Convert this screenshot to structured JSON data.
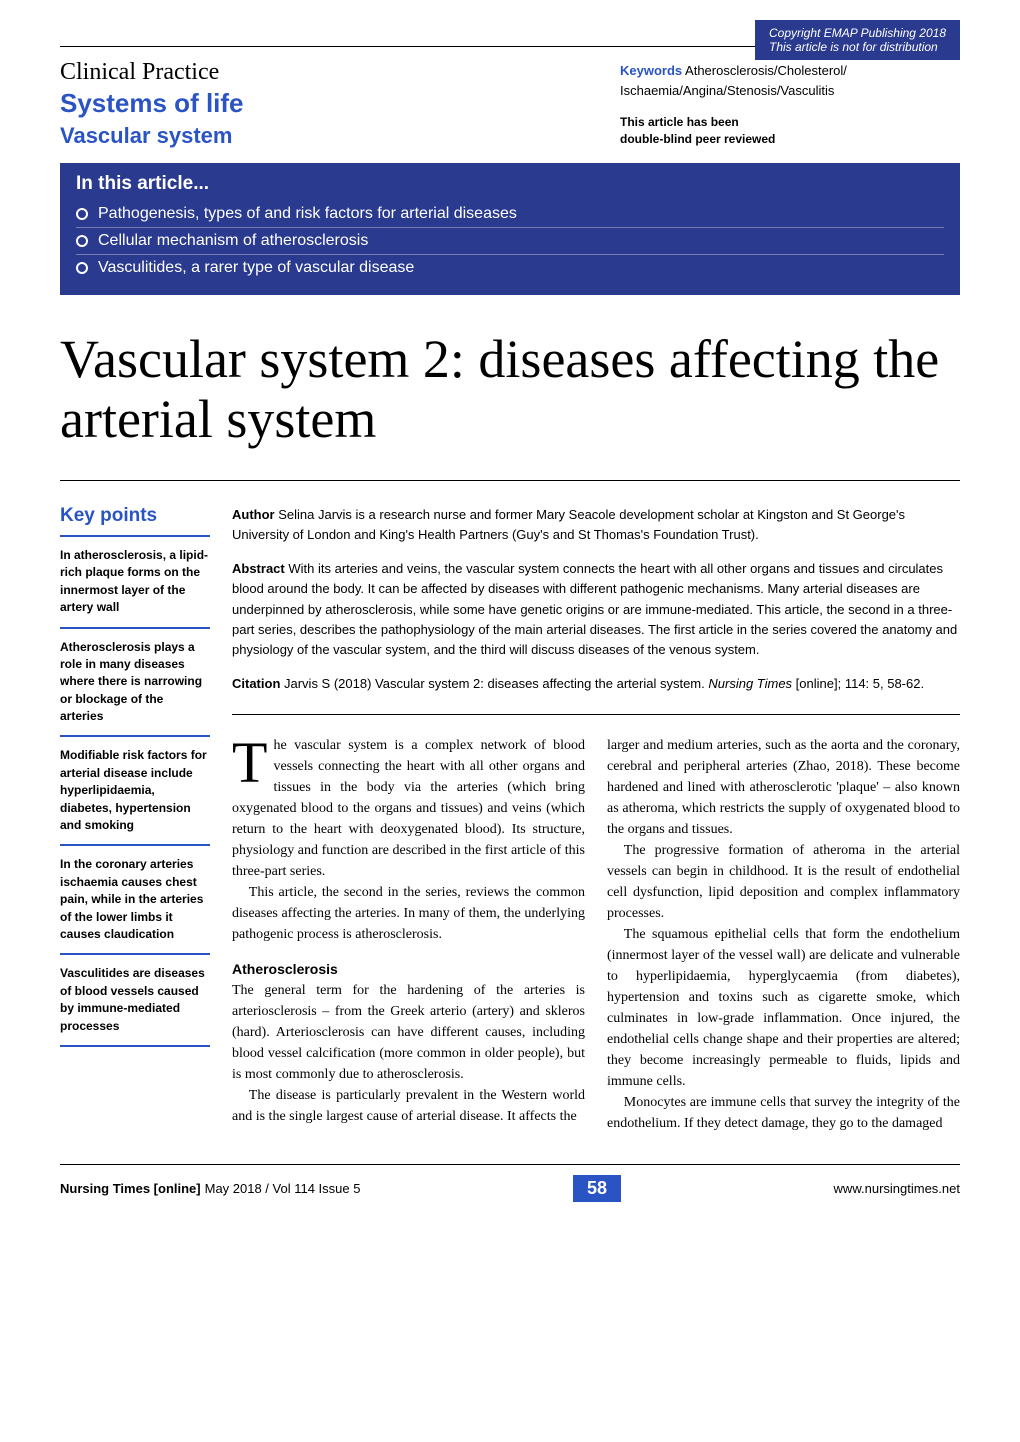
{
  "colors": {
    "brand_blue": "#2a54c4",
    "dark_blue": "#2a3a8f",
    "white": "#ffffff",
    "black": "#000000"
  },
  "copyright": {
    "line1": "Copyright EMAP Publishing 2018",
    "line2": "This article is not for distribution"
  },
  "header": {
    "clinical_practice": "Clinical Practice",
    "systems_of_life": "Systems of life",
    "vascular_system": "Vascular system",
    "keywords_label": "Keywords",
    "keywords_text": " Atherosclerosis/Cholesterol/\nIschaemia/Angina/Stenosis/Vasculitis",
    "peer_reviewed_line1": "This article has been",
    "peer_reviewed_line2": "double-blind peer reviewed"
  },
  "in_this_article": {
    "title": "In this article...",
    "items": [
      "Pathogenesis, types of and risk factors for arterial diseases",
      "Cellular mechanism of atherosclerosis",
      "Vasculitides, a rarer type of vascular disease"
    ]
  },
  "title": "Vascular system 2: diseases affecting the arterial system",
  "key_points": {
    "heading": "Key points",
    "items": [
      "In atherosclerosis, a lipid-rich plaque forms on the innermost layer of the artery wall",
      "Atherosclerosis plays a role in many diseases where there is narrowing or blockage of the arteries",
      "Modifiable risk factors for arterial disease include hyperlipidaemia, diabetes, hypertension and smoking",
      "In the coronary arteries ischaemia causes chest pain, while in the arteries of the lower limbs it causes claudication",
      "Vasculitides are diseases of blood vessels caused by immune-mediated processes"
    ]
  },
  "meta": {
    "author_label": "Author",
    "author_text": " Selina Jarvis is a research nurse and former Mary Seacole development scholar at Kingston and St George's University of London and King's Health Partners (Guy's and St Thomas's Foundation Trust).",
    "abstract_label": "Abstract",
    "abstract_text": " With its arteries and veins, the vascular system connects the heart with all other organs and tissues and circulates blood around the body. It can be affected by diseases with different pathogenic mechanisms. Many arterial diseases are underpinned by atherosclerosis, while some have genetic origins or are immune-mediated. This article, the second in a three-part series, describes the pathophysiology of the main arterial diseases. The first article in the series covered the anatomy and physiology of the vascular system, and the third will discuss diseases of the venous system.",
    "citation_label": "Citation",
    "citation_text_pre": " Jarvis S (2018) Vascular system 2: diseases affecting the arterial system. ",
    "citation_journal": "Nursing Times",
    "citation_text_post": " [online]; 114: 5, 58-62."
  },
  "body": {
    "col1": {
      "p1": "The vascular system is a complex network of blood vessels connecting the heart with all other organs and tissues in the body via the arteries (which bring oxygenated blood to the organs and tissues) and veins (which return to the heart with deoxygenated blood). Its structure, physiology and function are described in the first article of this three-part series.",
      "p2": "This article, the second in the series, reviews the common diseases affecting the arteries. In many of them, the underlying pathogenic process is atherosclerosis.",
      "subhead": "Atherosclerosis",
      "p3": "The general term for the hardening of the arteries is arteriosclerosis – from the Greek arterio (artery) and skleros (hard). Arteriosclerosis can have different causes, including blood vessel calcification (more common in older people), but is most commonly due to atherosclerosis.",
      "p4": "The disease is particularly prevalent in the Western world and is the single largest cause of arterial disease. It affects the"
    },
    "col2": {
      "p1": "larger and medium arteries, such as the aorta and the coronary, cerebral and peripheral arteries (Zhao, 2018). These become hardened and lined with atherosclerotic 'plaque' – also known as atheroma, which restricts the supply of oxygenated blood to the organs and tissues.",
      "p2": "The progressive formation of atheroma in the arterial vessels can begin in childhood. It is the result of endothelial cell dysfunction, lipid deposition and complex inflammatory processes.",
      "p3": "The squamous epithelial cells that form the endothelium (innermost layer of the vessel wall) are delicate and vulnerable to hyperlipidaemia, hyperglycaemia (from diabetes), hypertension and toxins such as cigarette smoke, which culminates in low-grade inflammation. Once injured, the endothelial cells change shape and their properties are altered; they become increasingly permeable to fluids, lipids and immune cells.",
      "p4": "Monocytes are immune cells that survey the integrity of the endothelium. If they detect damage, they go to the damaged"
    }
  },
  "footer": {
    "magazine": "Nursing Times [online]",
    "date": " May 2018 / Vol 114 Issue 5",
    "page_num": "58",
    "url": "www.nursingtimes.net"
  }
}
